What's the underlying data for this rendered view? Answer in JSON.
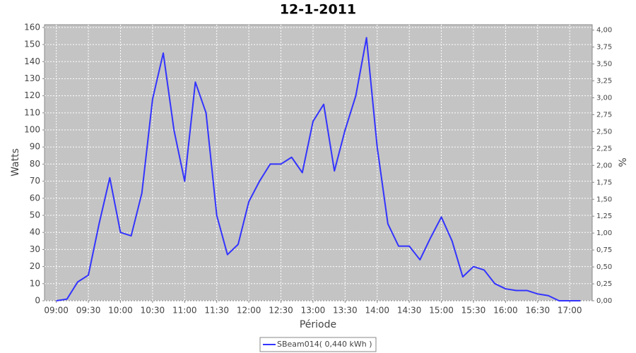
{
  "chart_data": {
    "type": "line",
    "title": "12-1-2011",
    "x_label": "Période",
    "y_label": "Watts",
    "y2_label": "%",
    "x": [
      "09:00",
      "09:10",
      "09:20",
      "09:30",
      "09:40",
      "09:50",
      "10:00",
      "10:10",
      "10:20",
      "10:30",
      "10:40",
      "10:50",
      "11:00",
      "11:10",
      "11:20",
      "11:30",
      "11:40",
      "11:50",
      "12:00",
      "12:10",
      "12:20",
      "12:30",
      "12:40",
      "12:50",
      "13:00",
      "13:10",
      "13:20",
      "13:30",
      "13:40",
      "13:50",
      "14:00",
      "14:10",
      "14:20",
      "14:30",
      "14:40",
      "14:50",
      "15:00",
      "15:10",
      "15:20",
      "15:30",
      "15:40",
      "15:50",
      "16:00",
      "16:10",
      "16:20",
      "16:30",
      "16:40",
      "16:50",
      "17:00",
      "17:10"
    ],
    "series": [
      {
        "name": "SBeam014( 0,440 kWh )",
        "color": "#3333ff",
        "values": [
          0,
          1,
          11,
          15,
          45,
          72,
          40,
          38,
          63,
          118,
          145,
          100,
          70,
          128,
          110,
          50,
          27,
          33,
          58,
          70,
          80,
          80,
          84,
          75,
          105,
          115,
          76,
          100,
          120,
          154,
          90,
          45,
          32,
          32,
          24,
          37,
          49,
          35,
          14,
          20,
          18,
          10,
          7,
          6,
          6,
          4,
          3,
          0,
          0,
          0
        ]
      }
    ],
    "xlim": [
      "08:49",
      "17:21"
    ],
    "xticks": [
      "09:00",
      "09:30",
      "10:00",
      "10:30",
      "11:00",
      "11:30",
      "12:00",
      "12:30",
      "13:00",
      "13:30",
      "14:00",
      "14:30",
      "15:00",
      "15:30",
      "16:00",
      "16:30",
      "17:00"
    ],
    "ylim": [
      0,
      161.6
    ],
    "yticks": [
      0,
      10,
      20,
      30,
      40,
      50,
      60,
      70,
      80,
      90,
      100,
      110,
      120,
      130,
      140,
      150,
      160
    ],
    "y2lim": [
      0,
      4.08
    ],
    "y2ticks": [
      {
        "value": 0,
        "label": "0,00"
      },
      {
        "value": 0.25,
        "label": "0,25"
      },
      {
        "value": 0.5,
        "label": "0,50"
      },
      {
        "value": 0.75,
        "label": "0,75"
      },
      {
        "value": 1,
        "label": "1,00"
      },
      {
        "value": 1.25,
        "label": "1,25"
      },
      {
        "value": 1.5,
        "label": "1,50"
      },
      {
        "value": 1.75,
        "label": "1,75"
      },
      {
        "value": 2,
        "label": "2,00"
      },
      {
        "value": 2.25,
        "label": "2,25"
      },
      {
        "value": 2.5,
        "label": "2,50"
      },
      {
        "value": 2.75,
        "label": "2,75"
      },
      {
        "value": 3,
        "label": "3,00"
      },
      {
        "value": 3.25,
        "label": "3,25"
      },
      {
        "value": 3.5,
        "label": "3,50"
      },
      {
        "value": 3.75,
        "label": "3,75"
      },
      {
        "value": 4,
        "label": "4,00"
      }
    ],
    "grid": true
  }
}
